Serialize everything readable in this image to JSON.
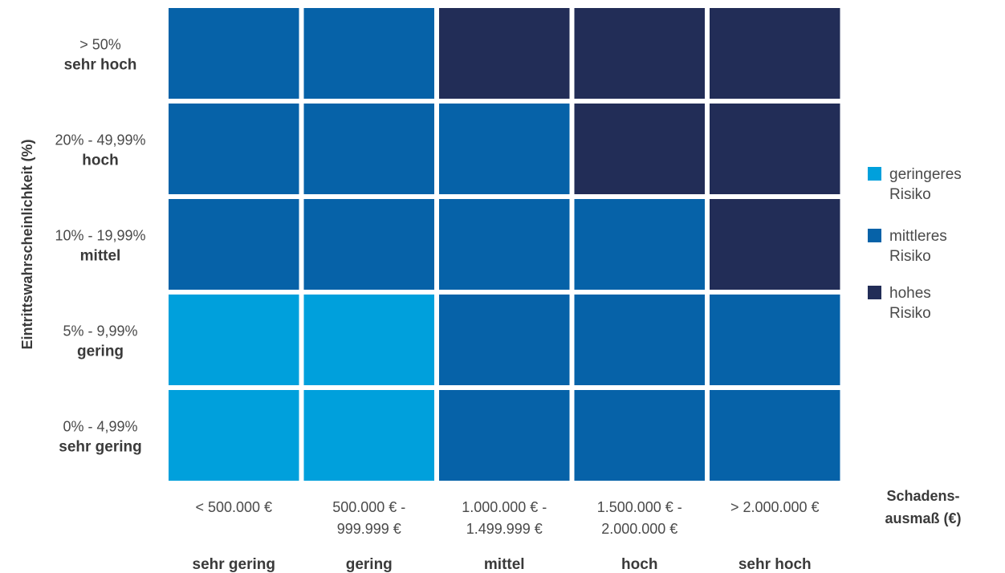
{
  "chart_data": {
    "type": "heatmap",
    "ylabel": "Eintrittswahrscheinlichkeit (%)",
    "xlabel_lines": [
      "Schadens-",
      "ausmaß (€)"
    ],
    "x_categories": [
      {
        "range_lines": [
          "< 500.000 €"
        ],
        "level": "sehr gering"
      },
      {
        "range_lines": [
          "500.000 € -",
          "999.999 €"
        ],
        "level": "gering"
      },
      {
        "range_lines": [
          "1.000.000 € -",
          "1.499.999 €"
        ],
        "level": "mittel"
      },
      {
        "range_lines": [
          "1.500.000 € -",
          "2.000.000 €"
        ],
        "level": "hoch"
      },
      {
        "range_lines": [
          "> 2.000.000 €"
        ],
        "level": "sehr hoch"
      }
    ],
    "y_categories": [
      {
        "range": "> 50%",
        "level": "sehr hoch"
      },
      {
        "range": "20% - 49,99%",
        "level": "hoch"
      },
      {
        "range": "10% - 19,99%",
        "level": "mittel"
      },
      {
        "range": "5% - 9,99%",
        "level": "gering"
      },
      {
        "range": "0% - 4,99%",
        "level": "sehr gering"
      }
    ],
    "risk_classes": [
      {
        "key": "low",
        "label_lines": [
          "geringeres",
          "Risiko"
        ],
        "color": "#00a0dc"
      },
      {
        "key": "medium",
        "label_lines": [
          "mittleres",
          "Risiko"
        ],
        "color": "#0662a8"
      },
      {
        "key": "high",
        "label_lines": [
          "hohes",
          "Risiko"
        ],
        "color": "#222d57"
      }
    ],
    "matrix": [
      [
        "medium",
        "medium",
        "high",
        "high",
        "high"
      ],
      [
        "medium",
        "medium",
        "medium",
        "high",
        "high"
      ],
      [
        "medium",
        "medium",
        "medium",
        "medium",
        "high"
      ],
      [
        "low",
        "low",
        "medium",
        "medium",
        "medium"
      ],
      [
        "low",
        "low",
        "medium",
        "medium",
        "medium"
      ]
    ]
  }
}
